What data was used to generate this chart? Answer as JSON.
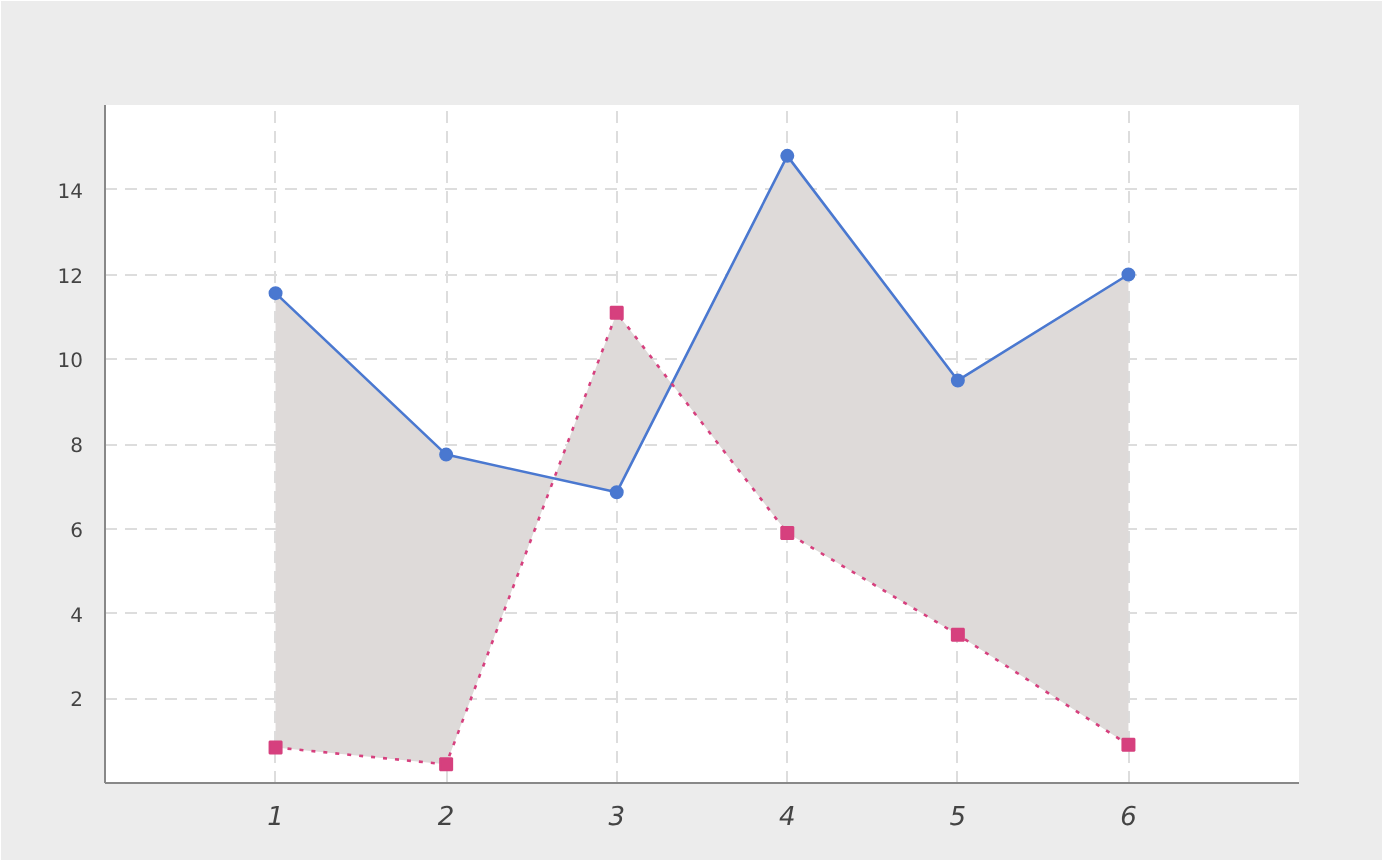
{
  "chart_data": {
    "type": "line",
    "x": [
      1,
      2,
      3,
      4,
      5,
      6
    ],
    "xlim": [
      0,
      7
    ],
    "ylim": [
      0,
      16
    ],
    "xticks": [
      1,
      2,
      3,
      4,
      5,
      6
    ],
    "yticks": [
      2,
      4,
      6,
      8,
      10,
      12,
      14
    ],
    "grid": true,
    "series": [
      {
        "color": "#4a78d0",
        "marker": "circle",
        "line_style": "solid",
        "values": [
          11.56,
          7.75,
          6.86,
          14.8,
          9.5,
          12.0
        ],
        "lower": [
          0.84,
          0.44,
          11.1,
          5.9,
          3.5,
          0.9
        ],
        "upper": [
          11.56,
          7.75,
          6.86,
          14.8,
          9.5,
          12.0
        ]
      },
      {
        "color": "#d6407e",
        "marker": "square",
        "line_style": "dotted",
        "values": [
          0.84,
          0.44,
          11.1,
          5.9,
          3.5,
          0.9
        ]
      }
    ]
  }
}
